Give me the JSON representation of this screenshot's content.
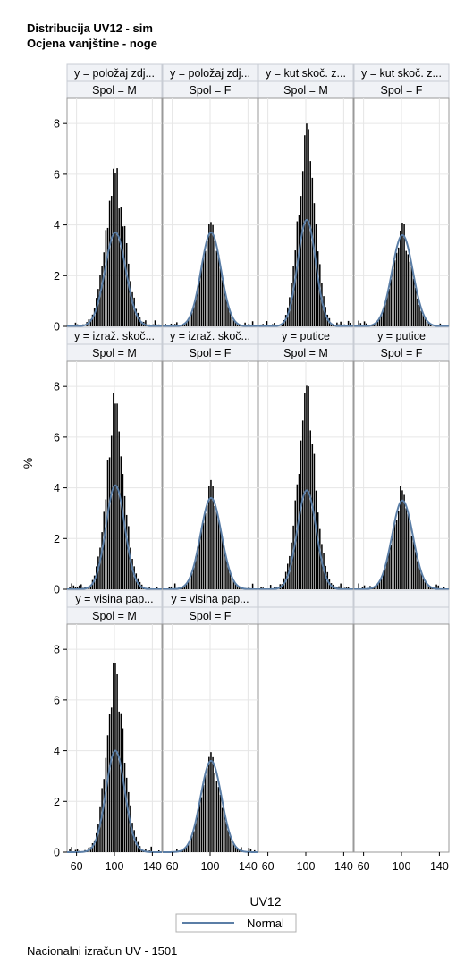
{
  "titles": [
    "Distribucija UV12 - sim",
    "Ocjena vanjštine - noge"
  ],
  "footnote": "Nacionalni izračun UV - 1501",
  "chart_data": {
    "type": "histogram_panel",
    "xlabel": "UV12",
    "ylabel": "%",
    "xlim": [
      50,
      150
    ],
    "ylim": [
      0,
      8.5
    ],
    "x_ticks": [
      60,
      100,
      140
    ],
    "y_ticks": [
      0,
      2,
      4,
      6,
      8
    ],
    "legend": {
      "entries": [
        "Normal"
      ],
      "position": "bottom-center"
    },
    "colors": {
      "bars": "#000000",
      "curve": "#5b7ea6",
      "header_fill": "#f0f2f6",
      "grid": "#e6e6e6"
    },
    "panels": [
      {
        "row": 0,
        "col": 0,
        "header": "y = položaj zdj...",
        "spol": "Spol = M",
        "peak": 6.7,
        "curve_peak": 3.7,
        "sd": 11,
        "noise": 0.55,
        "seed": 3
      },
      {
        "row": 0,
        "col": 1,
        "header": "y = položaj zdj...",
        "spol": "Spol = F",
        "peak": 4.4,
        "curve_peak": 3.7,
        "sd": 10.5,
        "noise": 0.2,
        "seed": 7
      },
      {
        "row": 0,
        "col": 2,
        "header": "y = kut skoč. z...",
        "spol": "Spol = M",
        "peak": 8.3,
        "curve_peak": 4.2,
        "sd": 9.5,
        "noise": 0.6,
        "seed": 11
      },
      {
        "row": 0,
        "col": 3,
        "header": "y = kut skoč. z...",
        "spol": "Spol = F",
        "peak": 4.1,
        "curve_peak": 3.6,
        "sd": 11,
        "noise": 0.2,
        "seed": 13
      },
      {
        "row": 1,
        "col": 0,
        "header": "y = izraž. skoč...",
        "spol": "Spol = M",
        "peak": 7.8,
        "curve_peak": 4.1,
        "sd": 10,
        "noise": 0.6,
        "seed": 17
      },
      {
        "row": 1,
        "col": 1,
        "header": "y = izraž. skoč...",
        "spol": "Spol = F",
        "peak": 4.4,
        "curve_peak": 3.6,
        "sd": 11,
        "noise": 0.2,
        "seed": 19
      },
      {
        "row": 1,
        "col": 2,
        "header": "y = putice",
        "spol": "Spol = M",
        "peak": 8.3,
        "curve_peak": 3.9,
        "sd": 10,
        "noise": 0.6,
        "seed": 23
      },
      {
        "row": 1,
        "col": 3,
        "header": "y = putice",
        "spol": "Spol = F",
        "peak": 4.1,
        "curve_peak": 3.5,
        "sd": 11,
        "noise": 0.2,
        "seed": 29
      },
      {
        "row": 2,
        "col": 0,
        "header": "y = visina pap...",
        "spol": "Spol = M",
        "peak": 7.5,
        "curve_peak": 4.0,
        "sd": 10,
        "noise": 0.6,
        "seed": 31
      },
      {
        "row": 2,
        "col": 1,
        "header": "y = visina pap...",
        "spol": "Spol = F",
        "peak": 4.1,
        "curve_peak": 3.6,
        "sd": 11,
        "noise": 0.2,
        "seed": 37
      }
    ]
  }
}
